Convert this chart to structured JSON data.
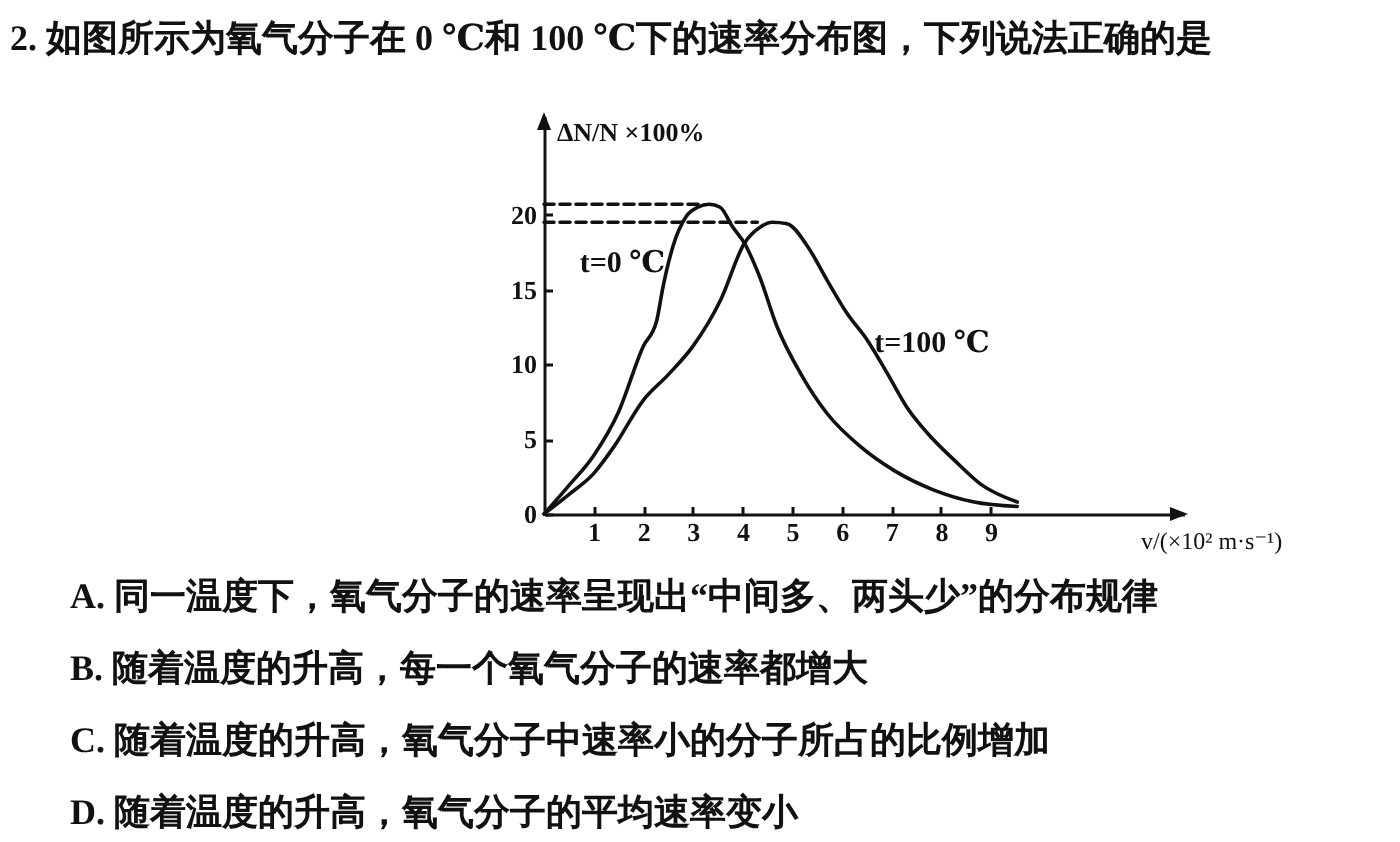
{
  "chart_data": {
    "type": "line",
    "title": "2. 如图所示为氧气分子在 0 ℃和 100 ℃下的速率分布图，下列说法正确的是",
    "xlabel": "v/(×10² m·s⁻¹)",
    "ylabel": "ΔN/N ×100%",
    "xlim": [
      0,
      12.9
    ],
    "ylim": [
      0,
      26.6
    ],
    "xticks": [
      1,
      2,
      3,
      4,
      5,
      6,
      7,
      8,
      9
    ],
    "yticks": [
      0,
      5,
      10,
      15,
      20
    ],
    "grid": false,
    "marker": "none",
    "series": [
      {
        "name": "t=0 ℃",
        "color": "#111111",
        "line_style": "solid",
        "x": [
          0,
          0.5,
          1,
          1.5,
          2,
          2.27,
          2.4,
          2.6,
          2.87,
          3.1,
          3.33,
          3.55,
          3.8,
          4.04,
          4.33,
          4.7,
          5.17,
          5.71,
          6.38,
          7.06,
          7.86,
          8.67,
          9.54
        ],
        "values": [
          0,
          1.9,
          3.9,
          6.8,
          11.2,
          12.9,
          15.2,
          17.9,
          19.9,
          20.5,
          20.7,
          20.5,
          19.2,
          18.1,
          16,
          12.5,
          9.4,
          6.7,
          4.5,
          2.9,
          1.6,
          0.8,
          0.5
        ]
      },
      {
        "name": "t=100 ℃",
        "color": "#111111",
        "line_style": "solid",
        "x": [
          0,
          0.5,
          1,
          1.41,
          2,
          2.5,
          3,
          3.56,
          4.04,
          4.37,
          4.6,
          4.9,
          5.31,
          5.71,
          6.11,
          6.52,
          6.92,
          7.32,
          7.73,
          8.27,
          8.8,
          9.54
        ],
        "values": [
          0,
          1.3,
          2.7,
          4.5,
          7.6,
          9.3,
          11.2,
          14.3,
          18.1,
          19.2,
          19.5,
          19.4,
          17.9,
          15.6,
          13.4,
          11.6,
          9.4,
          7.1,
          5.4,
          3.6,
          2.0,
          0.8
        ]
      },
      {
        "color": "#111111",
        "line_style": "dashed",
        "x": [
          0,
          3.2
        ],
        "values": [
          20.7,
          20.7
        ]
      },
      {
        "color": "#111111",
        "line_style": "dashed",
        "x": [
          0,
          4.3
        ],
        "values": [
          19.5,
          19.5
        ]
      }
    ],
    "annotations": [
      "A. 同一温度下，氧气分子的速率呈现出“中间多、两头少”的分布规律",
      "B. 随着温度的升高，每一个氧气分子的速率都增大",
      "C. 随着温度的升高，氧气分子中速率小的分子所占的比例增加",
      "D. 随着温度的升高，氧气分子的平均速率变小"
    ]
  }
}
